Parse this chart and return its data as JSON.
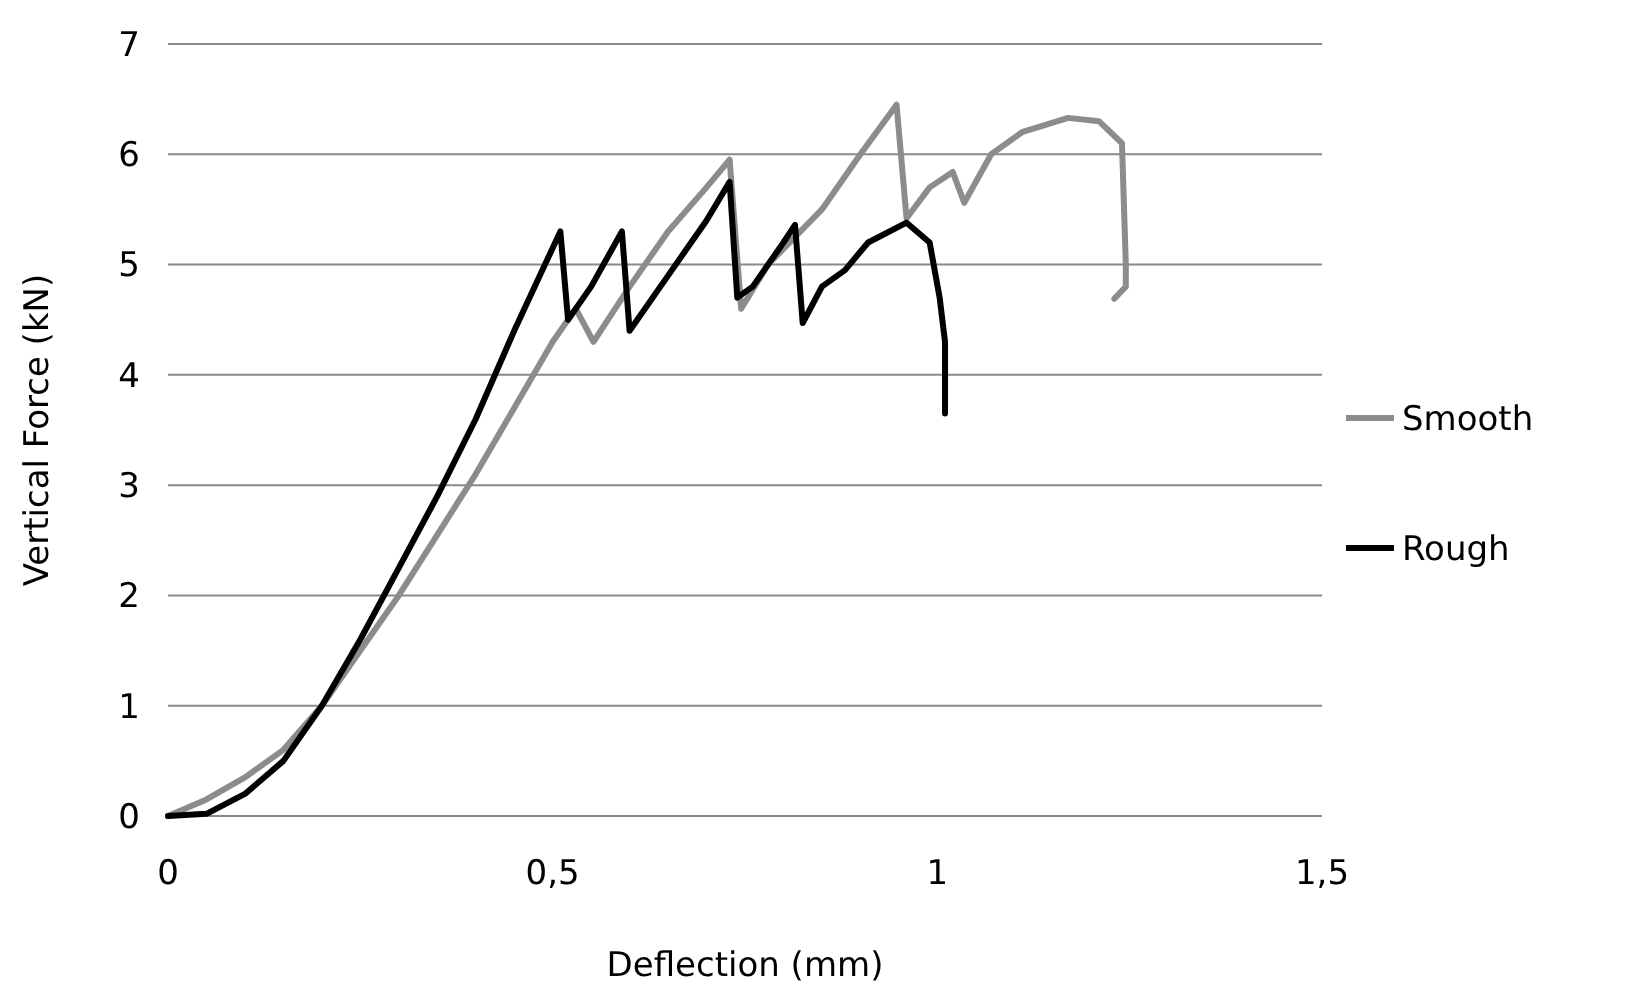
{
  "chart_data": {
    "type": "line",
    "xlabel": "Deflection (mm)",
    "ylabel": "Vertical Force (kN)",
    "xlim": [
      0,
      1.5
    ],
    "xticks": [
      0,
      {
        "value": 0.5,
        "label": "0,5"
      },
      1,
      {
        "value": 1.5,
        "label": "1,5"
      }
    ],
    "ylim": [
      0,
      7
    ],
    "yticks": [
      0,
      1,
      2,
      3,
      4,
      5,
      6,
      7
    ],
    "grid": "y",
    "legend": "right",
    "line_style": "solid",
    "series": [
      {
        "name": "Smooth",
        "color": "#8c8c8c",
        "x": [
          0,
          0.05,
          0.1,
          0.15,
          0.2,
          0.25,
          0.3,
          0.35,
          0.4,
          0.45,
          0.5,
          0.53,
          0.553,
          0.6,
          0.65,
          0.7,
          0.73,
          0.745,
          0.78,
          0.85,
          0.9,
          0.947,
          0.96,
          0.99,
          1.02,
          1.035,
          1.07,
          1.11,
          1.17,
          1.21,
          1.24,
          1.245,
          1.245,
          1.23
        ],
        "values": [
          0,
          0.15,
          0.35,
          0.6,
          1.0,
          1.5,
          2.0,
          2.55,
          3.1,
          3.7,
          4.3,
          4.6,
          4.3,
          4.8,
          5.3,
          5.7,
          5.95,
          4.6,
          5.0,
          5.5,
          6.0,
          6.45,
          5.42,
          5.7,
          5.84,
          5.56,
          6.0,
          6.2,
          6.33,
          6.3,
          6.1,
          5.0,
          4.8,
          4.69
        ]
      },
      {
        "name": "Rough",
        "color": "#000000",
        "x": [
          0,
          0.05,
          0.1,
          0.15,
          0.2,
          0.25,
          0.3,
          0.35,
          0.4,
          0.45,
          0.49,
          0.51,
          0.52,
          0.55,
          0.59,
          0.6,
          0.65,
          0.7,
          0.73,
          0.74,
          0.76,
          0.8,
          0.815,
          0.825,
          0.85,
          0.88,
          0.91,
          0.96,
          0.99,
          1.003,
          1.01,
          1.01
        ],
        "values": [
          0,
          0.02,
          0.2,
          0.5,
          1.0,
          1.6,
          2.25,
          2.9,
          3.6,
          4.4,
          5.0,
          5.3,
          4.5,
          4.8,
          5.3,
          4.4,
          4.9,
          5.4,
          5.75,
          4.7,
          4.8,
          5.2,
          5.36,
          4.47,
          4.8,
          4.95,
          5.2,
          5.38,
          5.2,
          4.7,
          4.3,
          3.65
        ]
      }
    ]
  }
}
